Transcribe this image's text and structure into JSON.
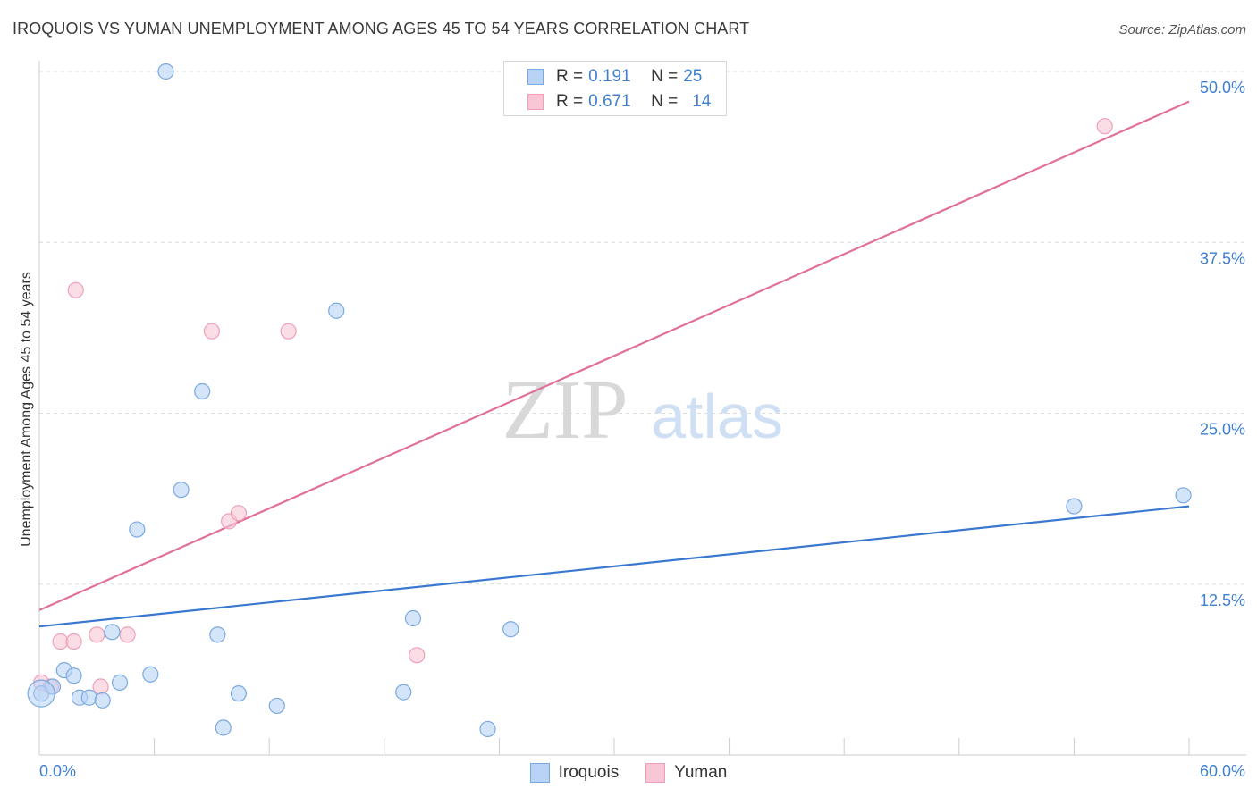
{
  "header": {
    "title": "IROQUOIS VS YUMAN UNEMPLOYMENT AMONG AGES 45 TO 54 YEARS CORRELATION CHART",
    "source": "Source: ZipAtlas.com"
  },
  "watermark": {
    "zip": "ZIP",
    "atlas": "atlas"
  },
  "legend_top": {
    "rows": [
      {
        "r_label": "R = ",
        "r_value": "0.191",
        "n_label": "N = ",
        "n_value": "25"
      },
      {
        "r_label": "R = ",
        "r_value": "0.671",
        "n_label": "N = ",
        "n_value": "14"
      }
    ]
  },
  "legend_bottom": {
    "items": [
      "Iroquois",
      "Yuman"
    ]
  },
  "colors": {
    "iroquois_fill": "#b8d3f5",
    "iroquois_stroke": "#7aa9e0",
    "iroquois_line": "#3a78d0",
    "yuman_fill": "#f9c6d5",
    "yuman_stroke": "#eea0b8",
    "yuman_line": "#e0709a",
    "tick_label": "#3f7fd0",
    "grid": "#dcdcdc"
  },
  "chart_data": {
    "type": "scatter",
    "title": "IROQUOIS VS YUMAN UNEMPLOYMENT AMONG AGES 45 TO 54 YEARS CORRELATION CHART",
    "xlabel": "",
    "ylabel": "Unemployment Among Ages 45 to 54 years",
    "xlim": [
      0,
      60
    ],
    "ylim": [
      0,
      50
    ],
    "x_tick_labels": [
      "0.0%",
      "60.0%"
    ],
    "y_ticks": [
      12.5,
      25.0,
      37.5,
      50.0
    ],
    "y_tick_labels": [
      "12.5%",
      "25.0%",
      "37.5%",
      "50.0%"
    ],
    "grid": true,
    "series": [
      {
        "name": "Iroquois",
        "points": [
          [
            0.1,
            4.5
          ],
          [
            0.7,
            5.0
          ],
          [
            1.3,
            6.2
          ],
          [
            1.8,
            5.8
          ],
          [
            2.1,
            4.2
          ],
          [
            2.6,
            4.2
          ],
          [
            3.3,
            4.0
          ],
          [
            3.8,
            9.0
          ],
          [
            4.2,
            5.3
          ],
          [
            5.1,
            16.5
          ],
          [
            5.8,
            5.9
          ],
          [
            6.6,
            50.0
          ],
          [
            7.4,
            19.4
          ],
          [
            8.5,
            26.6
          ],
          [
            9.3,
            8.8
          ],
          [
            9.6,
            2.0
          ],
          [
            10.4,
            4.5
          ],
          [
            12.4,
            3.6
          ],
          [
            15.5,
            32.5
          ],
          [
            19.0,
            4.6
          ],
          [
            19.5,
            10.0
          ],
          [
            23.4,
            1.9
          ],
          [
            24.6,
            9.2
          ],
          [
            54.0,
            18.2
          ],
          [
            59.7,
            19.0
          ]
        ],
        "trend": [
          [
            0,
            9.4
          ],
          [
            60,
            18.2
          ]
        ]
      },
      {
        "name": "Yuman",
        "points": [
          [
            0.1,
            5.3
          ],
          [
            0.6,
            5.0
          ],
          [
            1.1,
            8.3
          ],
          [
            1.8,
            8.3
          ],
          [
            1.9,
            34.0
          ],
          [
            3.0,
            8.8
          ],
          [
            3.2,
            5.0
          ],
          [
            4.6,
            8.8
          ],
          [
            9.0,
            31.0
          ],
          [
            9.9,
            17.1
          ],
          [
            10.4,
            17.7
          ],
          [
            13.0,
            31.0
          ],
          [
            19.7,
            7.3
          ],
          [
            55.6,
            46.0
          ]
        ],
        "trend": [
          [
            0,
            10.6
          ],
          [
            60,
            47.8
          ]
        ]
      }
    ]
  }
}
